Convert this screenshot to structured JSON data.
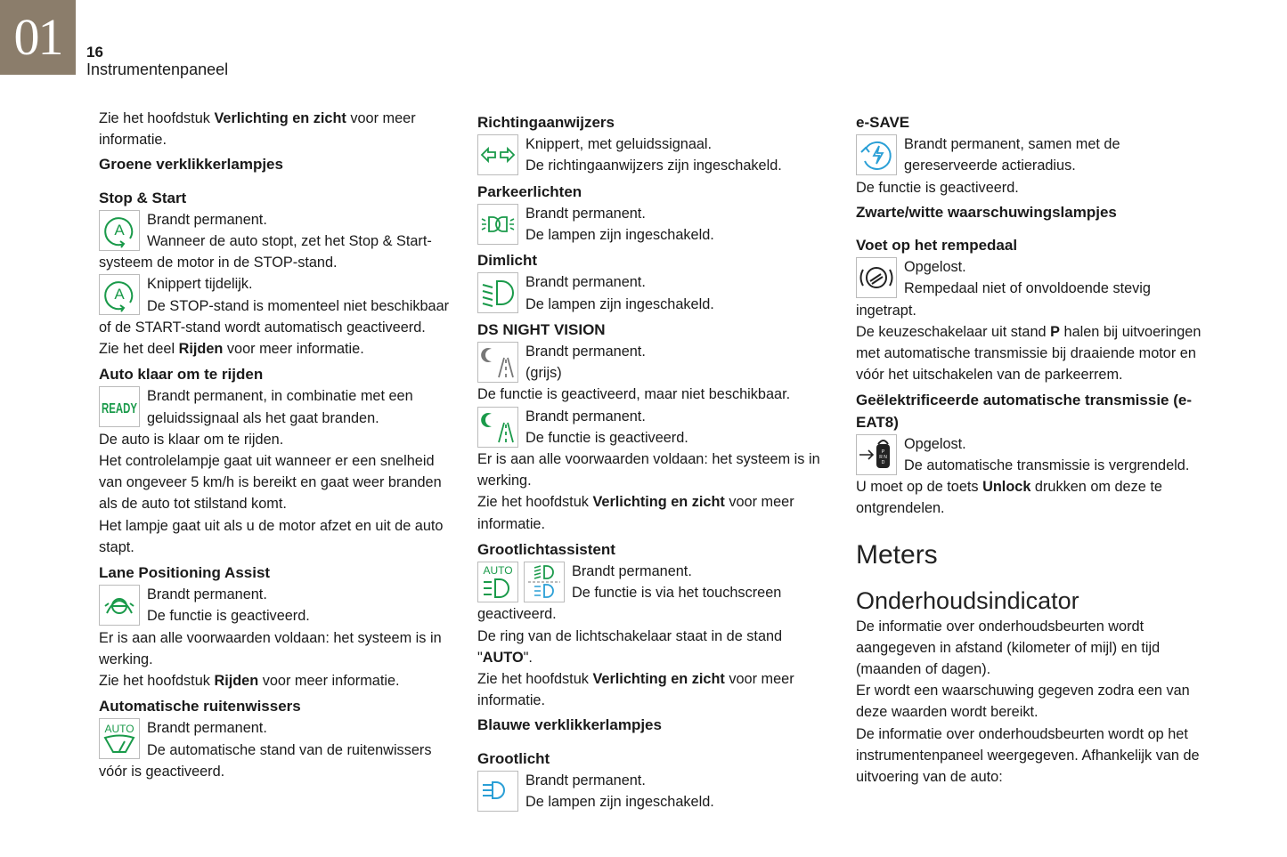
{
  "header": {
    "chapter": "01",
    "page": "16",
    "title": "Instrumentenpaneel"
  },
  "colors": {
    "brand": "#8b7d6b",
    "green": "#1a9a4a",
    "blue": "#2a9fd6",
    "grey": "#777777"
  },
  "columns": [
    {
      "blocks": [
        {
          "t": "p",
          "runs": [
            {
              "text": "Zie het hoofdstuk "
            },
            {
              "text": "Verlichting en zicht",
              "b": true
            },
            {
              "text": " voor meer informatie."
            }
          ]
        },
        {
          "t": "hs",
          "text": "Groene verklikkerlampjes"
        },
        {
          "t": "h",
          "text": "Stop & Start"
        },
        {
          "t": "icon",
          "icons": [
            "stop-start-icon"
          ],
          "lines": [
            "Brandt permanent.",
            "Wanneer de auto stopt, zet het Stop & Start-systeem de motor in de STOP-stand."
          ]
        },
        {
          "t": "icon",
          "icons": [
            "stop-start-icon"
          ],
          "lines": [
            "Knippert tijdelijk.",
            "De STOP-stand is momenteel niet beschikbaar of de START-stand wordt automatisch geactiveerd."
          ]
        },
        {
          "t": "p",
          "runs": [
            {
              "text": "Zie het deel "
            },
            {
              "text": "Rijden",
              "b": true
            },
            {
              "text": " voor meer informatie."
            }
          ]
        },
        {
          "t": "h",
          "text": "Auto klaar om te rijden"
        },
        {
          "t": "icon",
          "icons": [
            "ready-icon"
          ],
          "icon_text": "READY",
          "lines": [
            "Brandt permanent, in combinatie met een geluidssignaal als het gaat branden."
          ]
        },
        {
          "t": "p",
          "runs": [
            {
              "text": "De auto is klaar om te rijden."
            }
          ]
        },
        {
          "t": "p",
          "runs": [
            {
              "text": "Het controlelampje gaat uit wanneer er een snelheid van ongeveer 5 km/h is bereikt en gaat weer branden als de auto tot stilstand komt."
            }
          ]
        },
        {
          "t": "p",
          "runs": [
            {
              "text": "Het lampje gaat uit als u de motor afzet en uit de auto stapt."
            }
          ]
        },
        {
          "t": "h",
          "text": "Lane Positioning Assist"
        },
        {
          "t": "icon",
          "icons": [
            "lane-positioning-icon"
          ],
          "lines": [
            "Brandt permanent.",
            "De functie is geactiveerd."
          ]
        },
        {
          "t": "p",
          "runs": [
            {
              "text": "Er is aan alle voorwaarden voldaan: het systeem is in werking."
            }
          ]
        },
        {
          "t": "p",
          "runs": [
            {
              "text": "Zie het hoofdstuk "
            },
            {
              "text": "Rijden",
              "b": true
            },
            {
              "text": " voor meer informatie."
            }
          ]
        },
        {
          "t": "h",
          "text": "Automatische ruitenwissers"
        },
        {
          "t": "icon",
          "icons": [
            "auto-wiper-icon"
          ],
          "icon_text": "AUTO",
          "lines": [
            "Brandt permanent.",
            "De automatische stand van de ruitenwissers vóór is geactiveerd."
          ]
        }
      ]
    },
    {
      "blocks": [
        {
          "t": "h",
          "text": "Richtingaanwijzers"
        },
        {
          "t": "icon",
          "icons": [
            "turn-signal-icon"
          ],
          "lines": [
            "Knippert, met geluidssignaal.",
            "De richtingaanwijzers zijn ingeschakeld."
          ]
        },
        {
          "t": "h",
          "text": "Parkeerlichten"
        },
        {
          "t": "icon",
          "icons": [
            "parking-lights-icon"
          ],
          "lines": [
            "Brandt permanent.",
            "De lampen zijn ingeschakeld."
          ]
        },
        {
          "t": "h",
          "text": "Dimlicht"
        },
        {
          "t": "icon",
          "icons": [
            "dipped-beam-icon"
          ],
          "lines": [
            "Brandt permanent.",
            "De lampen zijn ingeschakeld."
          ]
        },
        {
          "t": "h",
          "text": "DS NIGHT VISION"
        },
        {
          "t": "icon",
          "icons": [
            "night-vision-grey-icon"
          ],
          "lines": [
            "Brandt permanent.",
            "(grijs)"
          ]
        },
        {
          "t": "p",
          "runs": [
            {
              "text": "De functie is geactiveerd, maar niet beschikbaar."
            }
          ]
        },
        {
          "t": "icon",
          "icons": [
            "night-vision-green-icon"
          ],
          "lines": [
            "Brandt permanent.",
            "De functie is geactiveerd."
          ]
        },
        {
          "t": "p",
          "runs": [
            {
              "text": "Er is aan alle voorwaarden voldaan: het systeem is in werking."
            }
          ]
        },
        {
          "t": "p",
          "runs": [
            {
              "text": "Zie het hoofdstuk "
            },
            {
              "text": "Verlichting en zicht",
              "b": true
            },
            {
              "text": " voor meer informatie."
            }
          ]
        },
        {
          "t": "h",
          "text": "Grootlichtassistent"
        },
        {
          "t": "icon",
          "icons": [
            "auto-high-beam-icon",
            "high-beam-assist-icon"
          ],
          "icon_text": "AUTO",
          "lines": [
            "Brandt permanent.",
            "De functie is via het touchscreen geactiveerd."
          ]
        },
        {
          "t": "p",
          "runs": [
            {
              "text": "De ring van de lichtschakelaar staat in de stand \""
            },
            {
              "text": "AUTO",
              "b": true
            },
            {
              "text": "\"."
            }
          ]
        },
        {
          "t": "p",
          "runs": [
            {
              "text": "Zie het hoofdstuk "
            },
            {
              "text": "Verlichting en zicht",
              "b": true
            },
            {
              "text": " voor meer informatie."
            }
          ]
        },
        {
          "t": "hs",
          "text": "Blauwe verklikkerlampjes"
        },
        {
          "t": "h",
          "text": "Grootlicht"
        },
        {
          "t": "icon",
          "icons": [
            "main-beam-icon"
          ],
          "lines": [
            "Brandt permanent.",
            "De lampen zijn ingeschakeld."
          ]
        }
      ]
    },
    {
      "blocks": [
        {
          "t": "h",
          "text": "e-SAVE"
        },
        {
          "t": "icon",
          "icons": [
            "e-save-icon"
          ],
          "lines": [
            "Brandt permanent, samen met de gereserveerde actieradius."
          ]
        },
        {
          "t": "p",
          "runs": [
            {
              "text": "De functie is geactiveerd."
            }
          ]
        },
        {
          "t": "hs",
          "text": "Zwarte/witte waarschuwingslampjes"
        },
        {
          "t": "h",
          "text": "Voet op het rempedaal"
        },
        {
          "t": "icon",
          "icons": [
            "foot-on-brake-icon"
          ],
          "lines": [
            "Opgelost.",
            "Rempedaal niet of onvoldoende stevig ingetrapt."
          ]
        },
        {
          "t": "p",
          "runs": [
            {
              "text": "De keuzeschakelaar uit stand "
            },
            {
              "text": "P",
              "b": true
            },
            {
              "text": " halen bij uitvoeringen met automatische transmissie bij draaiende motor en vóór het uitschakelen van de parkeerrem."
            }
          ]
        },
        {
          "t": "h",
          "text": "Geëlektrificeerde automatische transmissie (e-EAT8)"
        },
        {
          "t": "icon",
          "icons": [
            "gear-selector-lock-icon"
          ],
          "lines": [
            "Opgelost.",
            "De automatische transmissie is vergrendeld."
          ]
        },
        {
          "t": "p",
          "runs": [
            {
              "text": "U moet op de toets "
            },
            {
              "text": "Unlock",
              "b": true
            },
            {
              "text": " drukken om deze te ontgrendelen."
            }
          ]
        },
        {
          "t": "big",
          "text": "Meters"
        },
        {
          "t": "big2",
          "text": "Onderhoudsindicator"
        },
        {
          "t": "p",
          "runs": [
            {
              "text": "De informatie over onderhoudsbeurten wordt aangegeven in afstand (kilometer of mijl) en tijd (maanden of dagen)."
            }
          ]
        },
        {
          "t": "p",
          "runs": [
            {
              "text": "Er wordt een waarschuwing gegeven zodra een van deze waarden wordt bereikt."
            }
          ]
        },
        {
          "t": "p",
          "runs": [
            {
              "text": "De informatie over onderhoudsbeurten wordt op het instrumentenpaneel weergegeven. Afhankelijk van de uitvoering van de auto:"
            }
          ]
        }
      ]
    }
  ]
}
